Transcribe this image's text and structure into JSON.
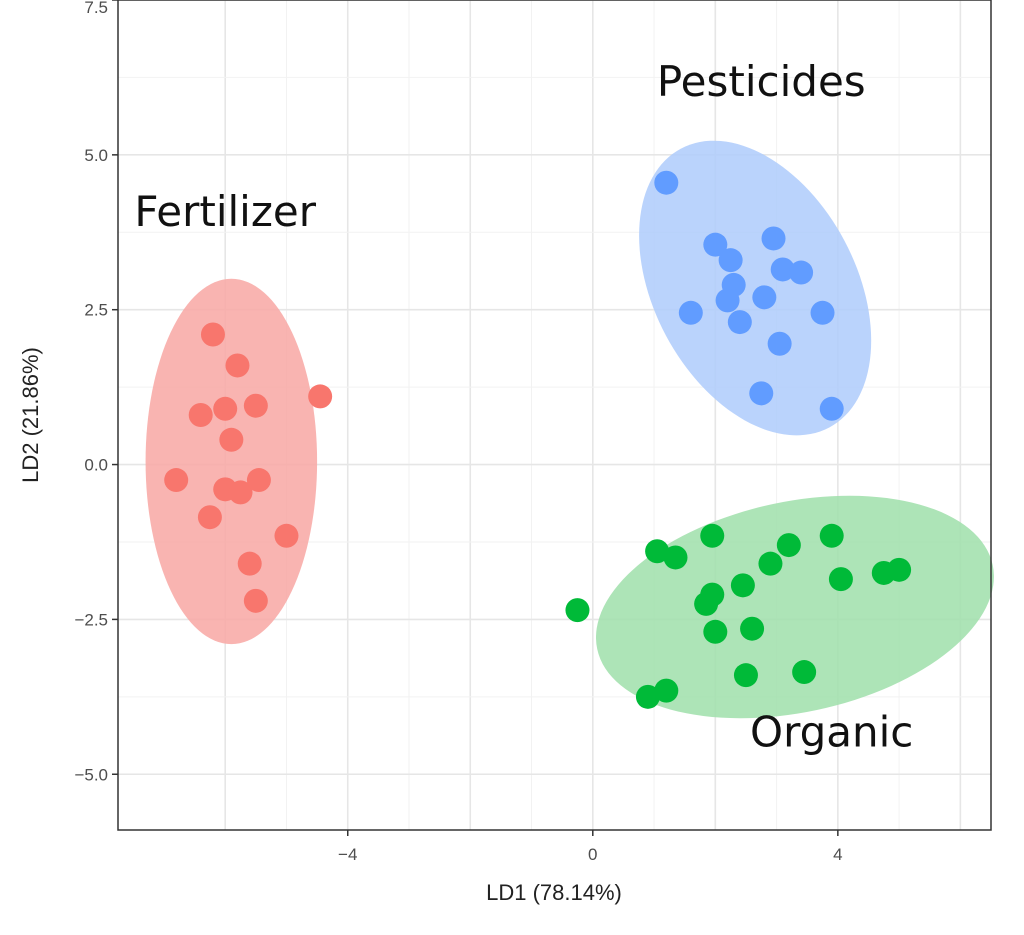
{
  "chart_data": {
    "type": "scatter",
    "xlabel": "LD1 (78.14%)",
    "ylabel": "LD2 (21.86%)",
    "xlim": [
      -7.75,
      6.5
    ],
    "ylim": [
      -5.9,
      7.5
    ],
    "x_ticks": [
      {
        "value": -4,
        "label": "−4"
      },
      {
        "value": 0,
        "label": "0"
      },
      {
        "value": 4,
        "label": "4"
      }
    ],
    "y_ticks": [
      {
        "value": 7.5,
        "label": "7.5"
      },
      {
        "value": 5.0,
        "label": "5.0"
      },
      {
        "value": 2.5,
        "label": "2.5"
      },
      {
        "value": 0.0,
        "label": "0.0"
      },
      {
        "value": -2.5,
        "label": "−2.5"
      },
      {
        "value": -5.0,
        "label": "−5.0"
      }
    ],
    "grid": true,
    "series": [
      {
        "name": "Fertilizer",
        "color": "#f8766d",
        "ellipse_color": "#f8a7a3",
        "ellipse": {
          "cx": -5.9,
          "cy": 0.05,
          "rx": 1.4,
          "ry": 2.95,
          "angle": 0
        },
        "points": [
          {
            "x": -6.2,
            "y": 2.1
          },
          {
            "x": -5.8,
            "y": 1.6
          },
          {
            "x": -4.45,
            "y": 1.1
          },
          {
            "x": -6.4,
            "y": 0.8
          },
          {
            "x": -6.0,
            "y": 0.9
          },
          {
            "x": -5.5,
            "y": 0.95
          },
          {
            "x": -5.9,
            "y": 0.4
          },
          {
            "x": -6.8,
            "y": -0.25
          },
          {
            "x": -6.0,
            "y": -0.4
          },
          {
            "x": -5.75,
            "y": -0.45
          },
          {
            "x": -5.45,
            "y": -0.25
          },
          {
            "x": -6.25,
            "y": -0.85
          },
          {
            "x": -5.0,
            "y": -1.15
          },
          {
            "x": -5.6,
            "y": -1.6
          },
          {
            "x": -5.5,
            "y": -2.2
          }
        ]
      },
      {
        "name": "Pesticides",
        "color": "#619cff",
        "ellipse_color": "#aecbfb",
        "ellipse": {
          "cx": 2.65,
          "cy": 2.85,
          "rx": 1.65,
          "ry": 2.55,
          "angle": -28
        },
        "points": [
          {
            "x": 1.2,
            "y": 4.55
          },
          {
            "x": 2.0,
            "y": 3.55
          },
          {
            "x": 2.25,
            "y": 3.3
          },
          {
            "x": 2.95,
            "y": 3.65
          },
          {
            "x": 3.1,
            "y": 3.15
          },
          {
            "x": 3.4,
            "y": 3.1
          },
          {
            "x": 2.3,
            "y": 2.9
          },
          {
            "x": 2.2,
            "y": 2.65
          },
          {
            "x": 2.8,
            "y": 2.7
          },
          {
            "x": 1.6,
            "y": 2.45
          },
          {
            "x": 2.4,
            "y": 2.3
          },
          {
            "x": 3.75,
            "y": 2.45
          },
          {
            "x": 3.05,
            "y": 1.95
          },
          {
            "x": 2.75,
            "y": 1.15
          },
          {
            "x": 3.9,
            "y": 0.9
          }
        ]
      },
      {
        "name": "Organic",
        "color": "#00ba38",
        "ellipse_color": "#9fdfaa",
        "ellipse": {
          "cx": 3.3,
          "cy": -2.3,
          "rx": 3.3,
          "ry": 1.7,
          "angle": -12
        },
        "points": [
          {
            "x": -0.25,
            "y": -2.35
          },
          {
            "x": 1.05,
            "y": -1.4
          },
          {
            "x": 1.35,
            "y": -1.5
          },
          {
            "x": 1.95,
            "y": -1.15
          },
          {
            "x": 3.2,
            "y": -1.3
          },
          {
            "x": 3.9,
            "y": -1.15
          },
          {
            "x": 2.9,
            "y": -1.6
          },
          {
            "x": 4.05,
            "y": -1.85
          },
          {
            "x": 4.75,
            "y": -1.75
          },
          {
            "x": 5.0,
            "y": -1.7
          },
          {
            "x": 2.45,
            "y": -1.95
          },
          {
            "x": 1.95,
            "y": -2.1
          },
          {
            "x": 1.85,
            "y": -2.25
          },
          {
            "x": 2.0,
            "y": -2.7
          },
          {
            "x": 2.6,
            "y": -2.65
          },
          {
            "x": 2.5,
            "y": -3.4
          },
          {
            "x": 3.45,
            "y": -3.35
          },
          {
            "x": 0.9,
            "y": -3.75
          },
          {
            "x": 1.2,
            "y": -3.65
          }
        ]
      }
    ],
    "annotations": [
      {
        "text": "Pesticides",
        "x": 2.75,
        "y": 5.95
      },
      {
        "text": "Fertilizer",
        "x": -6.0,
        "y": 3.85
      },
      {
        "text": "Organic",
        "x": 3.9,
        "y": -4.55
      }
    ]
  }
}
